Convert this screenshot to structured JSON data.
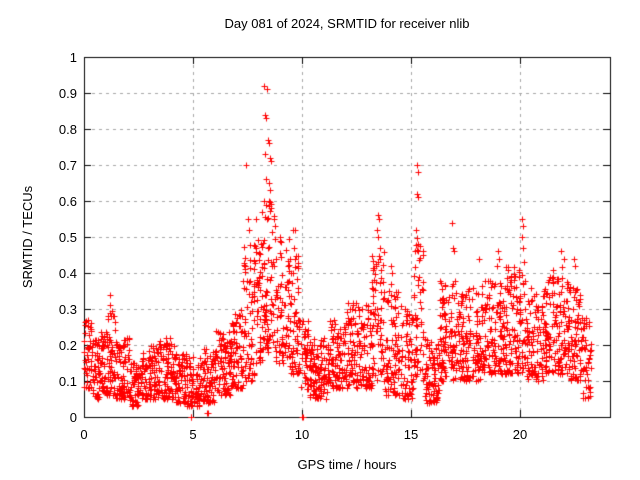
{
  "page": {
    "background_color": "#ffffff",
    "text_color": "#000000"
  },
  "chart_data": {
    "type": "scatter",
    "title": "Day 081 of 2024, SRMTID for receiver nlib",
    "xlabel": "GPS time / hours",
    "ylabel": "SRMTID / TECUs",
    "xlim": [
      0,
      24.13
    ],
    "ylim": [
      0,
      1
    ],
    "x_tick_values": [
      0,
      5,
      10,
      15,
      20
    ],
    "x_tick_labels": [
      "0",
      "5",
      "10",
      "15",
      "20"
    ],
    "y_tick_values": [
      0,
      0.1,
      0.2,
      0.3,
      0.4,
      0.5,
      0.6,
      0.7,
      0.8,
      0.9,
      1
    ],
    "y_tick_labels": [
      "0",
      "0.1",
      "0.2",
      "0.3",
      "0.4",
      "0.5",
      "0.6",
      "0.7",
      "0.8",
      "0.9",
      "1"
    ],
    "grid": true,
    "grid_color": "#a6a6a6",
    "border_color": "#000000",
    "legend": "none",
    "marker": "plus",
    "marker_color": "#ff0000",
    "marker_size_px": 7,
    "seed": 20240811,
    "y_skew": 1.35,
    "cloud_segments": [
      [
        0.0,
        0.35,
        45,
        0.08,
        0.27
      ],
      [
        0.35,
        0.75,
        50,
        0.05,
        0.22
      ],
      [
        0.75,
        1.1,
        45,
        0.06,
        0.24
      ],
      [
        1.1,
        1.45,
        45,
        0.06,
        0.3
      ],
      [
        1.45,
        2.1,
        80,
        0.05,
        0.22
      ],
      [
        2.1,
        2.6,
        60,
        0.03,
        0.15
      ],
      [
        2.6,
        3.4,
        95,
        0.05,
        0.2
      ],
      [
        3.4,
        4.2,
        95,
        0.05,
        0.22
      ],
      [
        4.2,
        4.7,
        60,
        0.04,
        0.18
      ],
      [
        4.7,
        5.3,
        70,
        0.03,
        0.17
      ],
      [
        5.3,
        6.0,
        85,
        0.04,
        0.2
      ],
      [
        6.0,
        6.7,
        85,
        0.06,
        0.24
      ],
      [
        6.7,
        7.3,
        75,
        0.08,
        0.3
      ],
      [
        7.3,
        7.9,
        75,
        0.1,
        0.48
      ],
      [
        7.9,
        8.2,
        40,
        0.15,
        0.52
      ],
      [
        8.2,
        8.8,
        75,
        0.18,
        0.6
      ],
      [
        8.8,
        9.4,
        70,
        0.15,
        0.5
      ],
      [
        9.4,
        9.9,
        60,
        0.12,
        0.45
      ],
      [
        9.9,
        10.3,
        40,
        0.07,
        0.28
      ],
      [
        10.3,
        11.2,
        110,
        0.05,
        0.22
      ],
      [
        11.2,
        12.0,
        100,
        0.08,
        0.28
      ],
      [
        12.0,
        13.2,
        145,
        0.08,
        0.32
      ],
      [
        13.2,
        13.8,
        70,
        0.1,
        0.46
      ],
      [
        13.8,
        14.6,
        95,
        0.06,
        0.35
      ],
      [
        14.6,
        15.1,
        60,
        0.05,
        0.3
      ],
      [
        15.1,
        15.6,
        55,
        0.1,
        0.5
      ],
      [
        15.6,
        16.3,
        80,
        0.04,
        0.22
      ],
      [
        16.3,
        17.2,
        110,
        0.1,
        0.38
      ],
      [
        17.2,
        18.2,
        125,
        0.1,
        0.36
      ],
      [
        18.2,
        19.3,
        135,
        0.12,
        0.38
      ],
      [
        19.3,
        20.3,
        120,
        0.12,
        0.42
      ],
      [
        20.3,
        21.3,
        120,
        0.1,
        0.36
      ],
      [
        21.3,
        22.3,
        120,
        0.12,
        0.42
      ],
      [
        22.3,
        22.8,
        65,
        0.1,
        0.36
      ],
      [
        22.8,
        23.25,
        50,
        0.05,
        0.28
      ]
    ],
    "spike_points": [
      [
        1.19,
        0.34
      ],
      [
        1.21,
        0.31
      ],
      [
        1.2,
        0.29
      ],
      [
        1.23,
        0.28
      ],
      [
        7.42,
        0.7
      ],
      [
        7.52,
        0.55
      ],
      [
        7.56,
        0.52
      ],
      [
        7.9,
        0.55
      ],
      [
        8.28,
        0.92
      ],
      [
        8.38,
        0.91
      ],
      [
        8.3,
        0.84
      ],
      [
        8.33,
        0.83
      ],
      [
        8.45,
        0.77
      ],
      [
        8.5,
        0.76
      ],
      [
        8.3,
        0.73
      ],
      [
        8.52,
        0.72
      ],
      [
        8.58,
        0.71
      ],
      [
        8.35,
        0.66
      ],
      [
        8.48,
        0.65
      ],
      [
        8.55,
        0.63
      ],
      [
        8.25,
        0.6
      ],
      [
        8.6,
        0.58
      ],
      [
        8.15,
        0.57
      ],
      [
        8.7,
        0.55
      ],
      [
        8.75,
        0.53
      ],
      [
        9.0,
        0.5
      ],
      [
        9.6,
        0.52
      ],
      [
        9.66,
        0.52
      ],
      [
        9.62,
        0.47
      ],
      [
        9.7,
        0.44
      ],
      [
        13.48,
        0.56
      ],
      [
        13.53,
        0.55
      ],
      [
        13.44,
        0.52
      ],
      [
        13.5,
        0.5
      ],
      [
        13.56,
        0.47
      ],
      [
        13.6,
        0.44
      ],
      [
        13.4,
        0.42
      ],
      [
        14.08,
        0.42
      ],
      [
        14.12,
        0.4
      ],
      [
        14.1,
        0.37
      ],
      [
        15.28,
        0.7
      ],
      [
        15.32,
        0.68
      ],
      [
        15.26,
        0.62
      ],
      [
        15.34,
        0.61
      ],
      [
        15.22,
        0.52
      ],
      [
        15.3,
        0.48
      ],
      [
        16.88,
        0.54
      ],
      [
        16.92,
        0.47
      ],
      [
        16.96,
        0.46
      ],
      [
        18.1,
        0.44
      ],
      [
        18.95,
        0.42
      ],
      [
        19.0,
        0.46
      ],
      [
        19.05,
        0.44
      ],
      [
        20.08,
        0.55
      ],
      [
        20.12,
        0.53
      ],
      [
        20.1,
        0.5
      ],
      [
        20.15,
        0.47
      ],
      [
        20.2,
        0.43
      ],
      [
        21.9,
        0.46
      ],
      [
        22.0,
        0.44
      ],
      [
        22.48,
        0.44
      ],
      [
        22.54,
        0.42
      ]
    ],
    "axis_points": [
      [
        4.9,
        0.0
      ],
      [
        4.93,
        0.0
      ],
      [
        10.0,
        0.0
      ],
      [
        10.03,
        0.0
      ],
      [
        5.62,
        0.01
      ],
      [
        5.68,
        0.01
      ]
    ]
  }
}
